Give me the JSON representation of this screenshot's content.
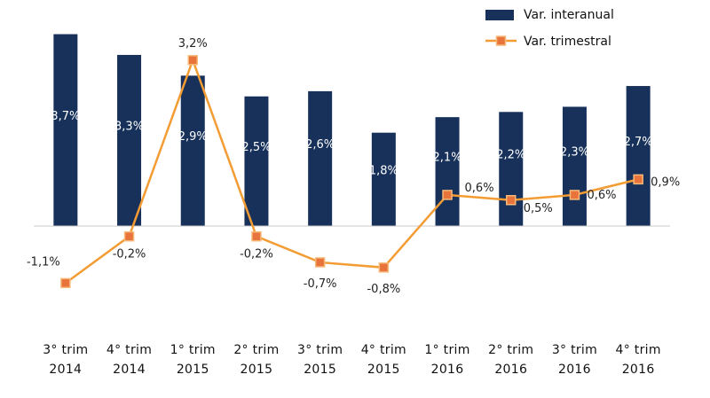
{
  "chart_data": {
    "type": "bar",
    "categories": [
      [
        "3° trim",
        "2014"
      ],
      [
        "4° trim",
        "2014"
      ],
      [
        "1° trim",
        "2015"
      ],
      [
        "2° trim",
        "2015"
      ],
      [
        "3° trim",
        "2015"
      ],
      [
        "4° trim",
        "2015"
      ],
      [
        "1° trim",
        "2016"
      ],
      [
        "2° trim",
        "2016"
      ],
      [
        "3° trim",
        "2016"
      ],
      [
        "4° trim",
        "2016"
      ]
    ],
    "series": [
      {
        "name": "Var. interanual",
        "type": "bar",
        "color": "#17315a",
        "values": [
          3.7,
          3.3,
          2.9,
          2.5,
          2.6,
          1.8,
          2.1,
          2.2,
          2.3,
          2.7
        ],
        "labels": [
          "3,7%",
          "3,3%",
          "2,9%",
          "2,5%",
          "2,6%",
          "1,8%",
          "2,1%",
          "2,2%",
          "2,3%",
          "2,7%"
        ]
      },
      {
        "name": "Var. trimestral",
        "type": "line",
        "color": "#f39c34",
        "marker_color": "#e8743b",
        "values": [
          -1.1,
          -0.2,
          3.2,
          -0.2,
          -0.7,
          -0.8,
          0.6,
          0.5,
          0.6,
          0.9
        ],
        "labels": [
          "-1,1%",
          "-0,2%",
          "3,2%",
          "-0,2%",
          "-0,7%",
          "-0,8%",
          "0,6%",
          "0,5%",
          "0,6%",
          "0,9%"
        ]
      }
    ],
    "ylim": [
      -2,
      4
    ],
    "grid": false,
    "legend": "top-right",
    "title": "",
    "xlabel": "",
    "ylabel": ""
  }
}
